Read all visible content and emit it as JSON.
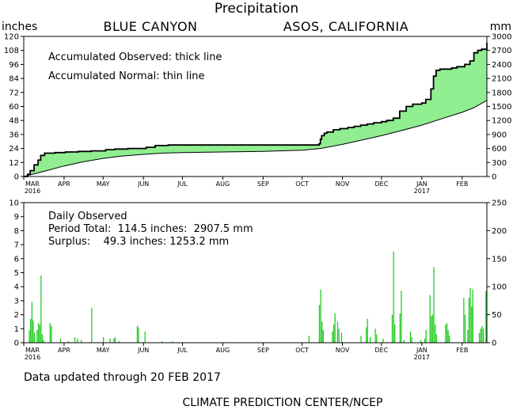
{
  "title": "Precipitation",
  "station_left": "BLUE CANYON",
  "station_right": "ASOS, CALIFORNIA",
  "unit_left": "inches",
  "unit_right": "mm",
  "footer_updated": "Data updated through 20 FEB 2017",
  "footer_source": "CLIMATE PREDICTION CENTER/NCEP",
  "colors": {
    "fill": "#90EE90",
    "bar": "#22CC22",
    "line": "#000000"
  },
  "chart_data": [
    {
      "type": "area",
      "title": "",
      "annotations": [
        "Accumulated Observed: thick line",
        "Accumulated Normal: thin line"
      ],
      "xlim": [
        "2016-03-01",
        "2017-02-20"
      ],
      "ylim": [
        0,
        120
      ],
      "yticks": [
        0,
        12,
        24,
        36,
        48,
        60,
        72,
        84,
        96,
        108,
        120
      ],
      "y2lim": [
        0,
        3000
      ],
      "y2ticks": [
        0,
        300,
        600,
        900,
        1200,
        1500,
        1800,
        2100,
        2400,
        2700,
        3000
      ],
      "xtick_labels": [
        "MAR",
        "APR",
        "MAY",
        "JUN",
        "JUL",
        "AUG",
        "SEP",
        "OCT",
        "NOV",
        "DEC",
        "JAN",
        "FEB"
      ],
      "xtick_dates": [
        "2016-03-01",
        "2016-04-01",
        "2016-05-01",
        "2016-06-01",
        "2016-07-01",
        "2016-08-01",
        "2016-09-01",
        "2016-10-01",
        "2016-11-01",
        "2016-12-01",
        "2017-01-01",
        "2017-02-01"
      ],
      "year_labels": [
        {
          "date": "2016-03-01",
          "text": "2016"
        },
        {
          "date": "2017-01-01",
          "text": "2017"
        }
      ],
      "series": [
        {
          "name": "Accumulated Observed",
          "points": [
            [
              "2016-03-01",
              0
            ],
            [
              "2016-03-04",
              2
            ],
            [
              "2016-03-06",
              5
            ],
            [
              "2016-03-09",
              10
            ],
            [
              "2016-03-12",
              14
            ],
            [
              "2016-03-14",
              18
            ],
            [
              "2016-03-17",
              20
            ],
            [
              "2016-03-25",
              20.5
            ],
            [
              "2016-04-02",
              21
            ],
            [
              "2016-04-12",
              21.5
            ],
            [
              "2016-04-22",
              22
            ],
            [
              "2016-05-03",
              23
            ],
            [
              "2016-05-10",
              23.5
            ],
            [
              "2016-05-20",
              24
            ],
            [
              "2016-06-03",
              25
            ],
            [
              "2016-06-10",
              26.5
            ],
            [
              "2016-06-20",
              27
            ],
            [
              "2016-07-15",
              27
            ],
            [
              "2016-08-15",
              27
            ],
            [
              "2016-09-15",
              27
            ],
            [
              "2016-10-10",
              27
            ],
            [
              "2016-10-14",
              28
            ],
            [
              "2016-10-15",
              32
            ],
            [
              "2016-10-16",
              35
            ],
            [
              "2016-10-18",
              37
            ],
            [
              "2016-10-20",
              38
            ],
            [
              "2016-10-25",
              40
            ],
            [
              "2016-10-30",
              41
            ],
            [
              "2016-11-05",
              42
            ],
            [
              "2016-11-10",
              43
            ],
            [
              "2016-11-15",
              44
            ],
            [
              "2016-11-20",
              45
            ],
            [
              "2016-11-25",
              46
            ],
            [
              "2016-12-01",
              47
            ],
            [
              "2016-12-05",
              48
            ],
            [
              "2016-12-10",
              50
            ],
            [
              "2016-12-15",
              56
            ],
            [
              "2016-12-20",
              60
            ],
            [
              "2016-12-25",
              62
            ],
            [
              "2017-01-01",
              63
            ],
            [
              "2017-01-04",
              66
            ],
            [
              "2017-01-08",
              75
            ],
            [
              "2017-01-10",
              86
            ],
            [
              "2017-01-12",
              91
            ],
            [
              "2017-01-15",
              92
            ],
            [
              "2017-01-20",
              92
            ],
            [
              "2017-01-24",
              93
            ],
            [
              "2017-01-28",
              94
            ],
            [
              "2017-02-03",
              96
            ],
            [
              "2017-02-07",
              99
            ],
            [
              "2017-02-10",
              106
            ],
            [
              "2017-02-13",
              108
            ],
            [
              "2017-02-16",
              109
            ],
            [
              "2017-02-20",
              114.5
            ]
          ]
        },
        {
          "name": "Accumulated Normal",
          "points": [
            [
              "2016-03-01",
              0
            ],
            [
              "2016-03-15",
              4
            ],
            [
              "2016-04-01",
              9
            ],
            [
              "2016-04-15",
              12.5
            ],
            [
              "2016-05-01",
              15.5
            ],
            [
              "2016-05-15",
              17.5
            ],
            [
              "2016-06-01",
              19
            ],
            [
              "2016-06-15",
              20
            ],
            [
              "2016-07-01",
              20.5
            ],
            [
              "2016-08-01",
              21
            ],
            [
              "2016-09-01",
              21.5
            ],
            [
              "2016-10-01",
              22.5
            ],
            [
              "2016-10-15",
              24
            ],
            [
              "2016-11-01",
              27.5
            ],
            [
              "2016-11-15",
              31
            ],
            [
              "2016-12-01",
              35
            ],
            [
              "2016-12-15",
              39
            ],
            [
              "2017-01-01",
              44
            ],
            [
              "2017-01-15",
              49
            ],
            [
              "2017-02-01",
              55
            ],
            [
              "2017-02-10",
              59
            ],
            [
              "2017-02-20",
              65.2
            ]
          ]
        }
      ]
    },
    {
      "type": "bar",
      "title": "",
      "annotations": [
        "Daily Observed",
        "Period Total:  114.5 inches:  2907.5 mm",
        "Surplus:    49.3 inches: 1253.2 mm"
      ],
      "xlim": [
        "2016-03-01",
        "2017-02-20"
      ],
      "ylim": [
        0,
        10
      ],
      "yticks": [
        0,
        1,
        2,
        3,
        4,
        5,
        6,
        7,
        8,
        9,
        10
      ],
      "y2lim": [
        0,
        250
      ],
      "y2ticks": [
        0,
        50,
        100,
        150,
        200,
        250
      ],
      "xtick_labels": [
        "MAR",
        "APR",
        "MAY",
        "JUN",
        "JUL",
        "AUG",
        "SEP",
        "OCT",
        "NOV",
        "DEC",
        "JAN",
        "FEB"
      ],
      "year_labels": [
        {
          "date": "2016-03-01",
          "text": "2016"
        },
        {
          "date": "2017-01-01",
          "text": "2017"
        }
      ],
      "values": [
        [
          "2016-03-05",
          0.9
        ],
        [
          "2016-03-06",
          1.7
        ],
        [
          "2016-03-07",
          2.9
        ],
        [
          "2016-03-08",
          1.6
        ],
        [
          "2016-03-09",
          0.7
        ],
        [
          "2016-03-11",
          0.9
        ],
        [
          "2016-03-12",
          1.4
        ],
        [
          "2016-03-13",
          1.3
        ],
        [
          "2016-03-14",
          4.8
        ],
        [
          "2016-03-15",
          0.6
        ],
        [
          "2016-03-16",
          0.2
        ],
        [
          "2016-03-21",
          1.4
        ],
        [
          "2016-03-22",
          1.2
        ],
        [
          "2016-03-29",
          0.3
        ],
        [
          "2016-04-04",
          0.1
        ],
        [
          "2016-04-09",
          0.4
        ],
        [
          "2016-04-11",
          0.3
        ],
        [
          "2016-04-14",
          0.2
        ],
        [
          "2016-04-22",
          2.5
        ],
        [
          "2016-05-01",
          0.4
        ],
        [
          "2016-05-06",
          0.3
        ],
        [
          "2016-05-09",
          0.3
        ],
        [
          "2016-05-10",
          0.4
        ],
        [
          "2016-05-13",
          0.1
        ],
        [
          "2016-05-27",
          1.2
        ],
        [
          "2016-05-28",
          1.1
        ],
        [
          "2016-06-02",
          0.8
        ],
        [
          "2016-06-15",
          0.1
        ],
        [
          "2016-06-23",
          0.1
        ],
        [
          "2016-10-06",
          0.5
        ],
        [
          "2016-10-14",
          2.7
        ],
        [
          "2016-10-15",
          3.8
        ],
        [
          "2016-10-16",
          1.5
        ],
        [
          "2016-10-17",
          0.9
        ],
        [
          "2016-10-24",
          0.8
        ],
        [
          "2016-10-25",
          1.3
        ],
        [
          "2016-10-26",
          2.1
        ],
        [
          "2016-10-28",
          1.5
        ],
        [
          "2016-10-29",
          1.0
        ],
        [
          "2016-10-31",
          0.7
        ],
        [
          "2016-11-15",
          0.5
        ],
        [
          "2016-11-19",
          1.1
        ],
        [
          "2016-11-20",
          1.7
        ],
        [
          "2016-11-22",
          0.4
        ],
        [
          "2016-11-26",
          1.0
        ],
        [
          "2016-11-27",
          0.6
        ],
        [
          "2016-12-02",
          0.3
        ],
        [
          "2016-12-09",
          2.0
        ],
        [
          "2016-12-10",
          6.5
        ],
        [
          "2016-12-11",
          1.3
        ],
        [
          "2016-12-15",
          2.1
        ],
        [
          "2016-12-16",
          3.7
        ],
        [
          "2016-12-18",
          0.2
        ],
        [
          "2016-12-23",
          0.8
        ],
        [
          "2016-12-24",
          0.4
        ],
        [
          "2016-12-31",
          0.2
        ],
        [
          "2017-01-03",
          0.3
        ],
        [
          "2017-01-04",
          0.9
        ],
        [
          "2017-01-07",
          3.4
        ],
        [
          "2017-01-08",
          1.9
        ],
        [
          "2017-01-09",
          2.0
        ],
        [
          "2017-01-10",
          5.4
        ],
        [
          "2017-01-11",
          1.3
        ],
        [
          "2017-01-12",
          0.6
        ],
        [
          "2017-01-19",
          1.3
        ],
        [
          "2017-01-20",
          1.4
        ],
        [
          "2017-01-21",
          0.9
        ],
        [
          "2017-01-22",
          0.5
        ],
        [
          "2017-02-02",
          3.2
        ],
        [
          "2017-02-03",
          2.0
        ],
        [
          "2017-02-05",
          0.9
        ],
        [
          "2017-02-06",
          3.2
        ],
        [
          "2017-02-07",
          3.9
        ],
        [
          "2017-02-08",
          2.6
        ],
        [
          "2017-02-09",
          3.8
        ],
        [
          "2017-02-14",
          0.7
        ],
        [
          "2017-02-15",
          1.0
        ],
        [
          "2017-02-16",
          1.2
        ],
        [
          "2017-02-17",
          1.0
        ],
        [
          "2017-02-19",
          3.7
        ]
      ]
    }
  ]
}
